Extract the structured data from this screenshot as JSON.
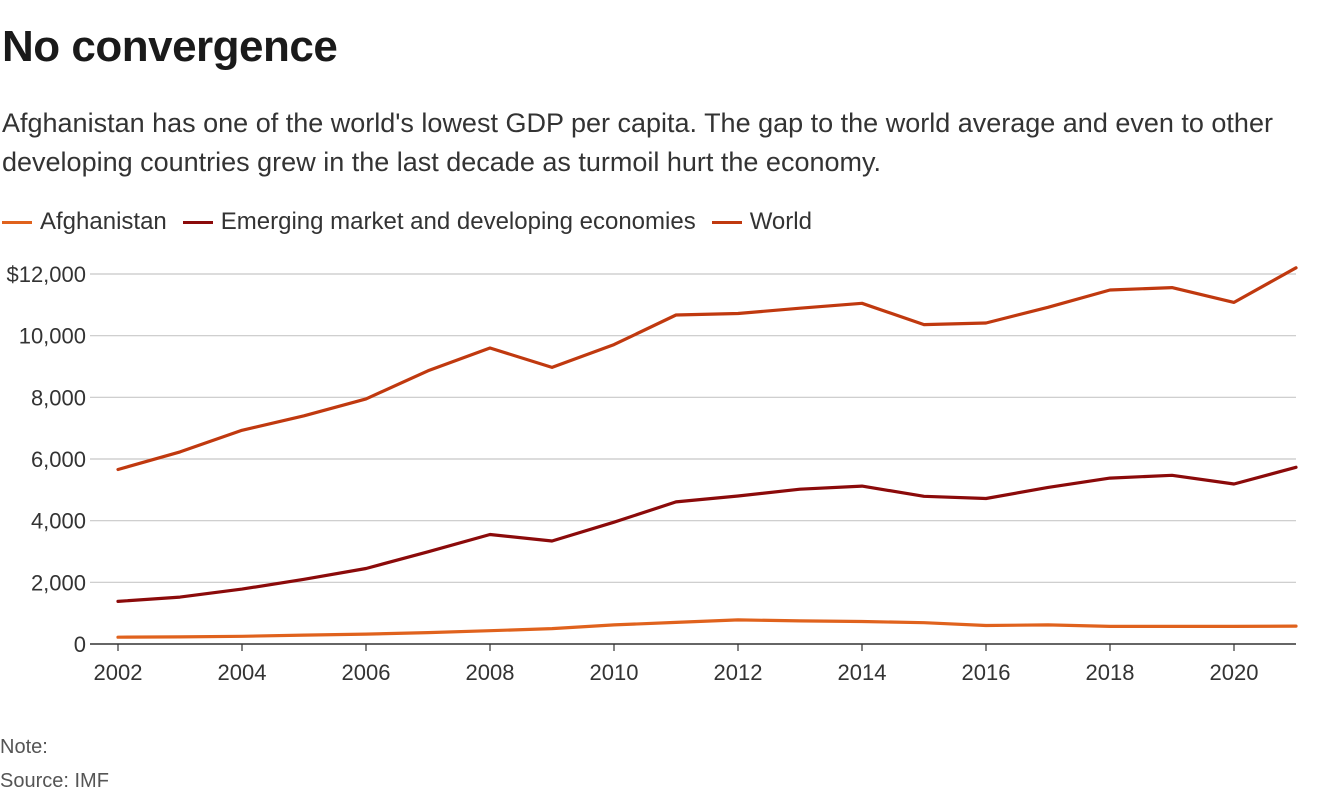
{
  "title": "No convergence",
  "subtitle": "Afghanistan has one of the world's lowest GDP per capita. The gap to the world average and even to other developing countries grew in the last decade as turmoil hurt the economy.",
  "note": "Note:",
  "source": "Source: IMF",
  "chart_data": {
    "type": "line",
    "title": "No convergence",
    "xlabel": "",
    "ylabel": "",
    "x": [
      2002,
      2003,
      2004,
      2005,
      2006,
      2007,
      2008,
      2009,
      2010,
      2011,
      2012,
      2013,
      2014,
      2015,
      2016,
      2017,
      2018,
      2019,
      2020,
      2021
    ],
    "xticks": [
      "2002",
      "2004",
      "2006",
      "2008",
      "2010",
      "2012",
      "2014",
      "2016",
      "2018",
      "2020"
    ],
    "xlim": [
      2002,
      2021
    ],
    "yticks": [
      "$12,000",
      "10,000",
      "8,000",
      "6,000",
      "4,000",
      "2,000",
      "0"
    ],
    "ylim": [
      0,
      12000
    ],
    "grid": true,
    "legend": "top-left",
    "series": [
      {
        "name": "Afghanistan",
        "color": "#e0621d",
        "values": [
          220,
          230,
          250,
          290,
          320,
          370,
          430,
          500,
          620,
          700,
          780,
          750,
          730,
          690,
          600,
          620,
          570,
          570,
          570,
          580
        ]
      },
      {
        "name": "Emerging market and developing economies",
        "color": "#8b0a0a",
        "values": [
          1380,
          1520,
          1780,
          2100,
          2450,
          2990,
          3550,
          3340,
          3950,
          4610,
          4800,
          5020,
          5120,
          4790,
          4720,
          5080,
          5380,
          5470,
          5190,
          5730
        ]
      },
      {
        "name": "World",
        "color": "#c0390f",
        "values": [
          5660,
          6230,
          6930,
          7400,
          7950,
          8860,
          9600,
          8970,
          9710,
          10670,
          10720,
          10890,
          11050,
          10360,
          10410,
          10920,
          11480,
          11560,
          11080,
          12200
        ]
      }
    ]
  }
}
